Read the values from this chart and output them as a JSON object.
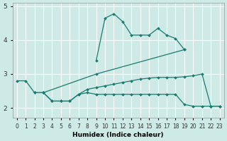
{
  "xlabel": "Humidex (Indice chaleur)",
  "xlim": [
    -0.5,
    23.5
  ],
  "ylim": [
    1.7,
    5.1
  ],
  "yticks": [
    2,
    3,
    4,
    5
  ],
  "xticks": [
    0,
    1,
    2,
    3,
    4,
    5,
    6,
    7,
    8,
    9,
    10,
    11,
    12,
    13,
    14,
    15,
    16,
    17,
    18,
    19,
    20,
    21,
    22,
    23
  ],
  "bg_color": "#ceeae6",
  "line_color": "#1a7a6e",
  "grid_color": "#ffffff",
  "lines": [
    {
      "x": [
        9,
        10,
        11,
        12,
        13,
        14,
        15,
        16,
        17,
        18,
        19
      ],
      "y": [
        3.4,
        4.65,
        4.78,
        4.55,
        4.15,
        4.15,
        4.15,
        4.35,
        4.15,
        4.05,
        3.72
      ]
    },
    {
      "x": [
        0,
        1,
        2,
        3,
        9,
        19
      ],
      "y": [
        2.8,
        2.8,
        2.45,
        2.45,
        3.0,
        3.72
      ]
    },
    {
      "x": [
        2,
        3,
        4,
        5,
        6,
        7,
        8,
        9,
        10,
        11,
        12,
        13,
        14,
        15,
        16,
        17,
        18,
        19,
        20,
        21,
        22,
        23
      ],
      "y": [
        2.45,
        2.45,
        2.2,
        2.2,
        2.2,
        2.4,
        2.55,
        2.6,
        2.65,
        2.7,
        2.75,
        2.8,
        2.85,
        2.88,
        2.9,
        2.9,
        2.9,
        2.92,
        2.95,
        3.0,
        2.05,
        2.05
      ]
    },
    {
      "x": [
        3,
        4,
        5,
        6,
        7,
        8,
        9,
        10,
        11,
        12,
        13,
        14,
        15,
        16,
        17,
        18,
        19,
        20,
        21,
        22,
        23
      ],
      "y": [
        2.45,
        2.2,
        2.2,
        2.2,
        2.4,
        2.45,
        2.4,
        2.4,
        2.4,
        2.4,
        2.4,
        2.4,
        2.4,
        2.4,
        2.4,
        2.4,
        2.1,
        2.05,
        2.05,
        2.05,
        2.05
      ]
    }
  ]
}
